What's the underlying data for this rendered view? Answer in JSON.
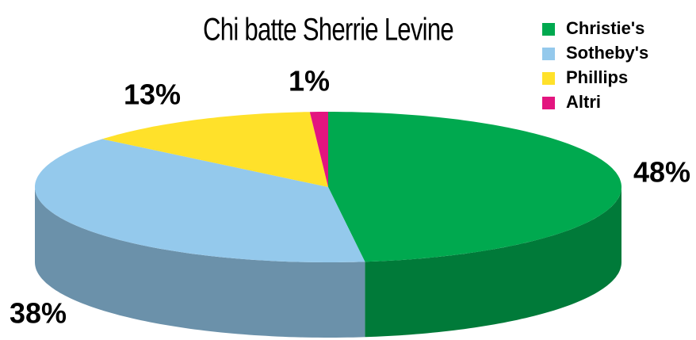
{
  "chart_data": {
    "type": "pie",
    "title": "Chi batte Sherrie Levine",
    "categories": [
      "Christie's",
      "Sotheby's",
      "Phillips",
      "Altri"
    ],
    "values": [
      48,
      38,
      13,
      1
    ],
    "value_labels": [
      "48%",
      "38%",
      "13%",
      "1%"
    ],
    "colors": [
      "#00a94f",
      "#94c9ec",
      "#ffe12a",
      "#e3157f"
    ],
    "legend": "top-right"
  }
}
